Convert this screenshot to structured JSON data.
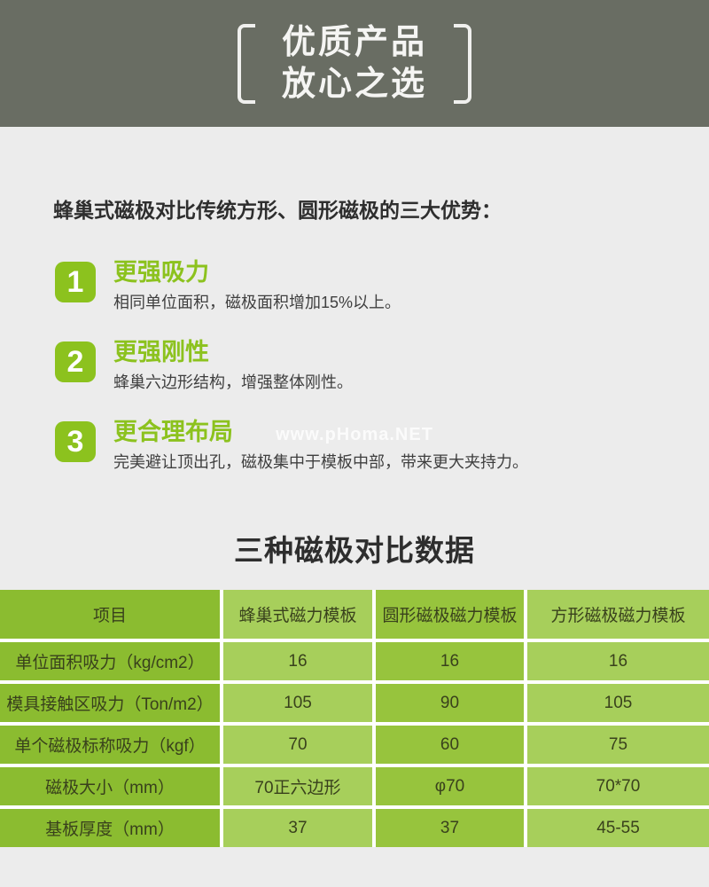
{
  "banner": {
    "line1": "优质产品",
    "line2": "放心之选"
  },
  "intro": {
    "heading": "蜂巢式磁极对比传统方形、圆形磁极的三大优势："
  },
  "advantages": [
    {
      "num": "1",
      "title": "更强吸力",
      "desc": "相同单位面积，磁极面积增加15%以上。"
    },
    {
      "num": "2",
      "title": "更强刚性",
      "desc": "蜂巢六边形结构，增强整体刚性。"
    },
    {
      "num": "3",
      "title": "更合理布局",
      "desc": "完美避让顶出孔，磁极集中于模板中部，带来更大夹持力。"
    }
  ],
  "watermark": "www.pHoma.NET",
  "table_section": {
    "title": "三种磁极对比数据"
  },
  "comparison_table": {
    "header": [
      "项目",
      "蜂巢式磁力模板",
      "圆形磁极磁力模板",
      "方形磁极磁力模板"
    ],
    "rows": [
      [
        "单位面积吸力（kg/cm2）",
        "16",
        "16",
        "16"
      ],
      [
        "模具接触区吸力（Ton/m2）",
        "105",
        "90",
        "105"
      ],
      [
        "单个磁极标称吸力（kgf）",
        "70",
        "60",
        "75"
      ],
      [
        "磁极大小（mm）",
        "70正六边形",
        "φ70",
        "70*70"
      ],
      [
        "基板厚度（mm）",
        "37",
        "37",
        "45-55"
      ]
    ]
  },
  "colors": {
    "banner_bg": "#696d63",
    "page_bg": "#ececec",
    "accent_green": "#8cc21e",
    "table_col_dark": "#8bbc30",
    "table_col_medium": "#97c43d",
    "table_col_light": "#a7cf5b"
  }
}
